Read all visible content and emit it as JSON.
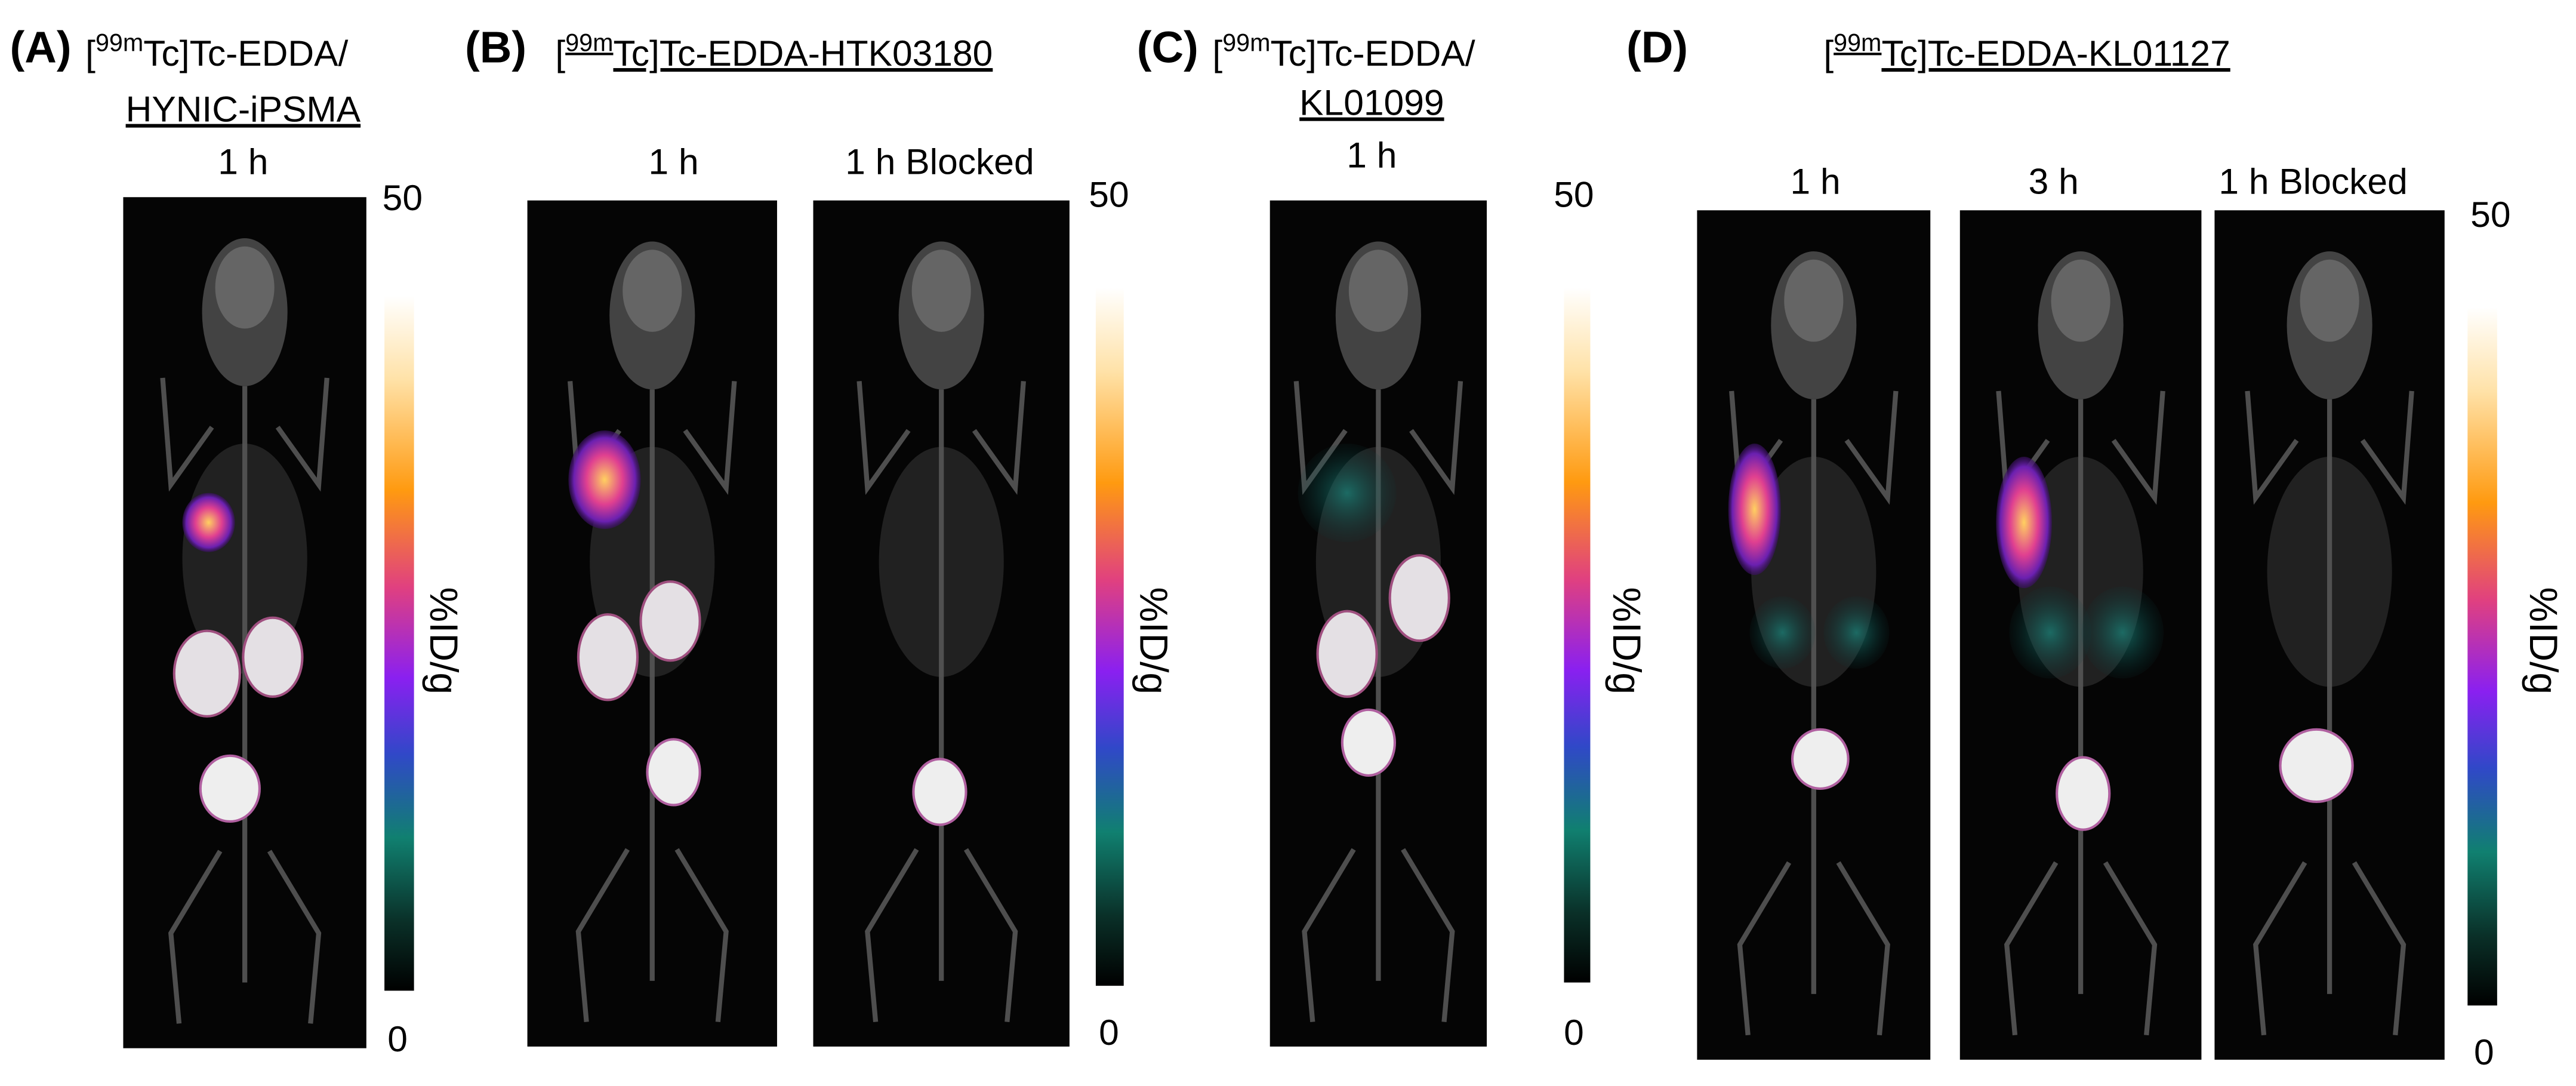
{
  "panels": [
    {
      "label": "(A)",
      "title": {
        "open": "[",
        "isotope": "99m",
        "compound": "Tc]Tc-EDDA/",
        "line2": "HYNIC-iPSMA"
      },
      "images": [
        "1 h"
      ],
      "colorbar": {
        "max": 50,
        "min": 0,
        "unit": "%ID/g"
      }
    },
    {
      "label": "(B)",
      "title": {
        "open": "[",
        "isotope": "99m",
        "compound": "Tc]Tc-EDDA-HTK03180"
      },
      "images": [
        "1 h",
        "1 h Blocked"
      ],
      "colorbar": {
        "max": 50,
        "min": 0,
        "unit": "%ID/g"
      }
    },
    {
      "label": "(C)",
      "title": {
        "open": "[",
        "isotope": "99m",
        "compound": "Tc]Tc-EDDA/",
        "line2": "KL01099"
      },
      "images": [
        "1 h"
      ],
      "colorbar": {
        "max": 50,
        "min": 0,
        "unit": "%ID/g"
      }
    },
    {
      "label": "(D)",
      "title": {
        "open": "[",
        "isotope": "99m",
        "compound": "Tc]Tc-EDDA-KL01127"
      },
      "images": [
        "1 h",
        "3 h",
        "1 h Blocked"
      ],
      "colorbar": {
        "max": 50,
        "min": 0,
        "unit": "%ID/g"
      }
    }
  ]
}
